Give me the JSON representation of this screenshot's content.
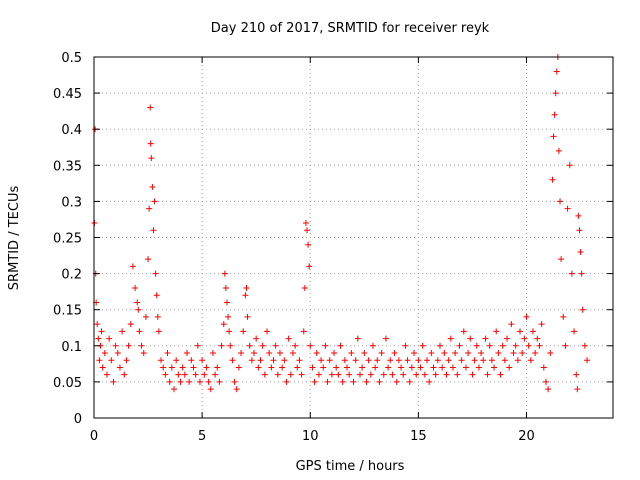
{
  "chart_data": {
    "type": "scatter",
    "title": "Day 210 of 2017, SRMTID for receiver reyk",
    "xlabel": "GPS time / hours",
    "ylabel": "SRMTID / TECUs",
    "xlim": [
      0,
      24
    ],
    "ylim": [
      0,
      0.5
    ],
    "xticks": [
      0,
      5,
      10,
      15,
      20
    ],
    "yticks": [
      0,
      0.05,
      0.1,
      0.15,
      0.2,
      0.25,
      0.3,
      0.35,
      0.4,
      0.45,
      0.5
    ],
    "grid": true,
    "marker": "+",
    "color": "#ff0000",
    "series": [
      {
        "name": "SRMTID",
        "x": [
          0.02,
          0.05,
          0.08,
          0.1,
          0.15,
          0.2,
          0.25,
          0.3,
          0.35,
          0.4,
          0.5,
          0.6,
          0.7,
          0.8,
          0.9,
          1.0,
          1.1,
          1.2,
          1.3,
          1.4,
          1.5,
          1.6,
          1.7,
          1.8,
          1.9,
          2.0,
          2.05,
          2.1,
          2.2,
          2.3,
          2.4,
          2.5,
          2.55,
          2.6,
          2.62,
          2.65,
          2.7,
          2.75,
          2.8,
          2.85,
          2.9,
          2.95,
          3.0,
          3.1,
          3.2,
          3.3,
          3.4,
          3.5,
          3.6,
          3.7,
          3.8,
          3.9,
          4.0,
          4.1,
          4.2,
          4.3,
          4.4,
          4.5,
          4.6,
          4.7,
          4.8,
          4.9,
          5.0,
          5.1,
          5.2,
          5.3,
          5.4,
          5.5,
          5.6,
          5.7,
          5.8,
          5.9,
          6.0,
          6.05,
          6.1,
          6.15,
          6.2,
          6.25,
          6.3,
          6.4,
          6.5,
          6.6,
          6.7,
          6.8,
          6.9,
          7.0,
          7.05,
          7.1,
          7.2,
          7.3,
          7.4,
          7.5,
          7.6,
          7.7,
          7.8,
          7.9,
          8.0,
          8.1,
          8.2,
          8.3,
          8.4,
          8.5,
          8.6,
          8.7,
          8.8,
          8.9,
          9.0,
          9.1,
          9.2,
          9.3,
          9.4,
          9.5,
          9.6,
          9.7,
          9.75,
          9.8,
          9.85,
          9.9,
          9.95,
          10.0,
          10.1,
          10.2,
          10.3,
          10.4,
          10.5,
          10.6,
          10.7,
          10.8,
          10.9,
          11.0,
          11.1,
          11.2,
          11.3,
          11.4,
          11.5,
          11.6,
          11.7,
          11.8,
          11.9,
          12.0,
          12.1,
          12.2,
          12.3,
          12.4,
          12.5,
          12.6,
          12.7,
          12.8,
          12.9,
          13.0,
          13.1,
          13.2,
          13.3,
          13.4,
          13.5,
          13.6,
          13.7,
          13.8,
          13.9,
          14.0,
          14.1,
          14.2,
          14.3,
          14.4,
          14.5,
          14.6,
          14.7,
          14.8,
          14.9,
          15.0,
          15.1,
          15.2,
          15.3,
          15.4,
          15.5,
          15.6,
          15.7,
          15.8,
          15.9,
          16.0,
          16.1,
          16.2,
          16.3,
          16.4,
          16.5,
          16.6,
          16.7,
          16.8,
          16.9,
          17.0,
          17.1,
          17.2,
          17.3,
          17.4,
          17.5,
          17.6,
          17.7,
          17.8,
          17.9,
          18.0,
          18.1,
          18.2,
          18.3,
          18.4,
          18.5,
          18.6,
          18.7,
          18.8,
          18.9,
          19.0,
          19.1,
          19.2,
          19.3,
          19.4,
          19.5,
          19.6,
          19.7,
          19.8,
          19.9,
          20.0,
          20.1,
          20.2,
          20.3,
          20.4,
          20.5,
          20.6,
          20.7,
          20.8,
          20.9,
          21.0,
          21.1,
          21.2,
          21.25,
          21.3,
          21.35,
          21.4,
          21.45,
          21.5,
          21.55,
          21.6,
          21.7,
          21.8,
          21.9,
          22.0,
          22.1,
          22.2,
          22.3,
          22.35,
          22.4,
          22.45,
          22.5,
          22.55,
          22.6,
          22.7,
          22.8
        ],
        "y": [
          0.27,
          0.4,
          0.2,
          0.16,
          0.13,
          0.11,
          0.08,
          0.1,
          0.12,
          0.07,
          0.09,
          0.06,
          0.11,
          0.08,
          0.05,
          0.1,
          0.09,
          0.07,
          0.12,
          0.06,
          0.08,
          0.1,
          0.13,
          0.21,
          0.18,
          0.16,
          0.15,
          0.12,
          0.1,
          0.09,
          0.14,
          0.22,
          0.29,
          0.43,
          0.38,
          0.36,
          0.32,
          0.26,
          0.3,
          0.2,
          0.17,
          0.14,
          0.12,
          0.08,
          0.07,
          0.06,
          0.09,
          0.05,
          0.07,
          0.04,
          0.08,
          0.06,
          0.05,
          0.07,
          0.06,
          0.09,
          0.05,
          0.08,
          0.07,
          0.06,
          0.1,
          0.05,
          0.08,
          0.06,
          0.07,
          0.05,
          0.04,
          0.09,
          0.06,
          0.07,
          0.05,
          0.1,
          0.13,
          0.2,
          0.18,
          0.16,
          0.14,
          0.12,
          0.1,
          0.08,
          0.05,
          0.04,
          0.07,
          0.09,
          0.12,
          0.17,
          0.18,
          0.14,
          0.1,
          0.08,
          0.09,
          0.11,
          0.07,
          0.08,
          0.1,
          0.06,
          0.12,
          0.09,
          0.07,
          0.08,
          0.1,
          0.06,
          0.09,
          0.07,
          0.08,
          0.05,
          0.11,
          0.06,
          0.09,
          0.1,
          0.07,
          0.08,
          0.06,
          0.12,
          0.18,
          0.27,
          0.26,
          0.24,
          0.21,
          0.1,
          0.07,
          0.05,
          0.09,
          0.06,
          0.08,
          0.07,
          0.1,
          0.05,
          0.08,
          0.06,
          0.09,
          0.07,
          0.06,
          0.1,
          0.05,
          0.08,
          0.07,
          0.06,
          0.09,
          0.05,
          0.08,
          0.11,
          0.06,
          0.07,
          0.09,
          0.05,
          0.08,
          0.06,
          0.1,
          0.07,
          0.08,
          0.05,
          0.09,
          0.06,
          0.11,
          0.07,
          0.08,
          0.06,
          0.09,
          0.05,
          0.08,
          0.07,
          0.06,
          0.1,
          0.08,
          0.05,
          0.07,
          0.09,
          0.06,
          0.08,
          0.07,
          0.1,
          0.06,
          0.08,
          0.05,
          0.09,
          0.07,
          0.06,
          0.08,
          0.1,
          0.07,
          0.09,
          0.06,
          0.08,
          0.11,
          0.07,
          0.09,
          0.06,
          0.1,
          0.08,
          0.12,
          0.07,
          0.09,
          0.11,
          0.06,
          0.08,
          0.1,
          0.07,
          0.09,
          0.08,
          0.11,
          0.06,
          0.1,
          0.08,
          0.07,
          0.12,
          0.09,
          0.06,
          0.1,
          0.08,
          0.11,
          0.07,
          0.13,
          0.09,
          0.1,
          0.08,
          0.12,
          0.09,
          0.11,
          0.14,
          0.1,
          0.08,
          0.12,
          0.09,
          0.11,
          0.1,
          0.13,
          0.07,
          0.05,
          0.04,
          0.09,
          0.33,
          0.39,
          0.42,
          0.45,
          0.48,
          0.5,
          0.37,
          0.3,
          0.22,
          0.14,
          0.1,
          0.29,
          0.35,
          0.2,
          0.12,
          0.06,
          0.04,
          0.28,
          0.26,
          0.23,
          0.2,
          0.15,
          0.1,
          0.08
        ]
      }
    ]
  }
}
